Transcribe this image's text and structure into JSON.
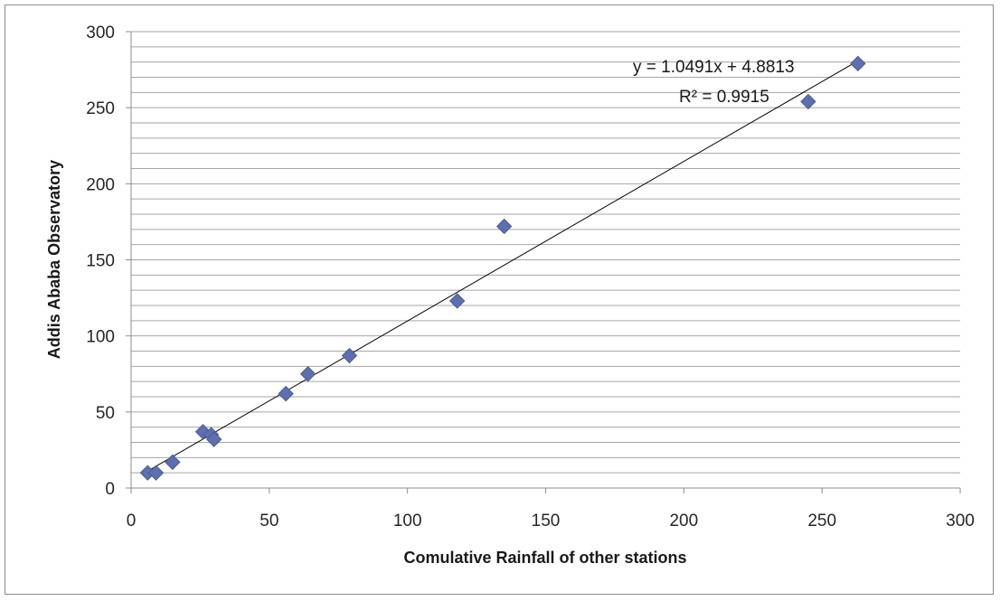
{
  "chart_data": {
    "type": "scatter",
    "title": "",
    "xlabel": "Comulative Rainfall of other stations",
    "ylabel": "Addis Ababa Observatory",
    "xlim": [
      0,
      300
    ],
    "ylim": [
      0,
      300
    ],
    "x_ticks": [
      "0",
      "50",
      "100",
      "150",
      "200",
      "250",
      "300"
    ],
    "y_ticks": [
      "0",
      "50",
      "100",
      "150",
      "200",
      "250",
      "300"
    ],
    "grid": "horizontal",
    "marker": "diamond",
    "marker_color": "#5f6fae",
    "series": [
      {
        "points": [
          [
            6,
            10
          ],
          [
            9,
            10
          ],
          [
            15,
            17
          ],
          [
            26,
            37
          ],
          [
            29,
            35
          ],
          [
            30,
            32
          ],
          [
            56,
            62
          ],
          [
            64,
            75
          ],
          [
            79,
            87
          ],
          [
            118,
            123
          ],
          [
            135,
            172
          ],
          [
            245,
            254
          ],
          [
            263,
            279
          ]
        ]
      }
    ],
    "trendline": {
      "type": "linear",
      "slope": 1.0491,
      "intercept": 4.8813,
      "color": "#000000",
      "equation_text": "y = 1.0491x + 4.8813",
      "r2_text": "R² = 0.9915"
    }
  }
}
